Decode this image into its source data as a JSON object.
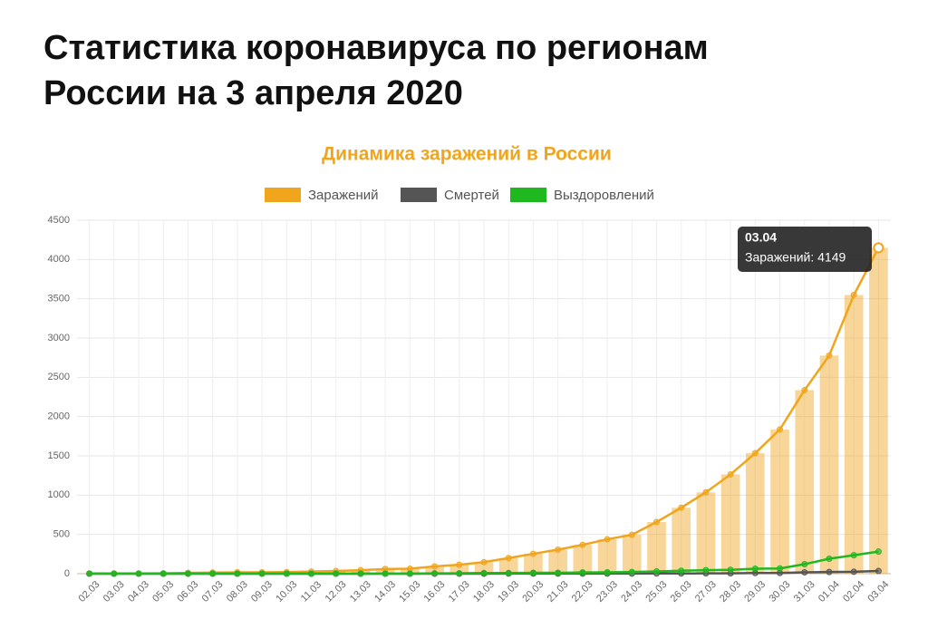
{
  "header": {
    "title": "Статистика коронавируса по регионам России на 3 апреля 2020"
  },
  "chart_data": {
    "type": "bar-line",
    "title": "Динамика заражений в России",
    "categories": [
      "02.03",
      "03.03",
      "04.03",
      "05.03",
      "06.03",
      "07.03",
      "08.03",
      "09.03",
      "10.03",
      "11.03",
      "12.03",
      "13.03",
      "14.03",
      "15.03",
      "16.03",
      "17.03",
      "18.03",
      "19.03",
      "20.03",
      "21.03",
      "22.03",
      "23.03",
      "24.03",
      "25.03",
      "26.03",
      "27.03",
      "28.03",
      "29.03",
      "30.03",
      "31.03",
      "01.04",
      "02.04",
      "03.04"
    ],
    "series": [
      {
        "name": "Заражений",
        "color": "#f0a51c",
        "values": [
          3,
          3,
          3,
          4,
          10,
          14,
          17,
          17,
          20,
          28,
          34,
          45,
          59,
          63,
          93,
          114,
          147,
          199,
          253,
          306,
          367,
          438,
          495,
          658,
          840,
          1036,
          1264,
          1534,
          1836,
          2337,
          2777,
          3548,
          4149
        ]
      },
      {
        "name": "Смертей",
        "color": "#555555",
        "values": [
          0,
          0,
          0,
          0,
          0,
          0,
          0,
          0,
          0,
          0,
          0,
          0,
          0,
          0,
          0,
          0,
          0,
          1,
          1,
          1,
          1,
          1,
          1,
          3,
          3,
          4,
          4,
          8,
          9,
          17,
          22,
          24,
          34
        ]
      },
      {
        "name": "Выздоровлений",
        "color": "#1fb81f",
        "values": [
          0,
          0,
          0,
          0,
          0,
          0,
          0,
          0,
          0,
          0,
          0,
          0,
          0,
          0,
          5,
          5,
          8,
          9,
          12,
          12,
          16,
          17,
          22,
          29,
          38,
          45,
          49,
          64,
          66,
          121,
          190,
          235,
          281
        ]
      }
    ],
    "ylim": [
      0,
      4500
    ],
    "yticks": [
      0,
      500,
      1000,
      1500,
      2000,
      2500,
      3000,
      3500,
      4000,
      4500
    ],
    "grid": true,
    "tooltip": {
      "title": "03.04",
      "label": "Заражений: 4149"
    }
  }
}
